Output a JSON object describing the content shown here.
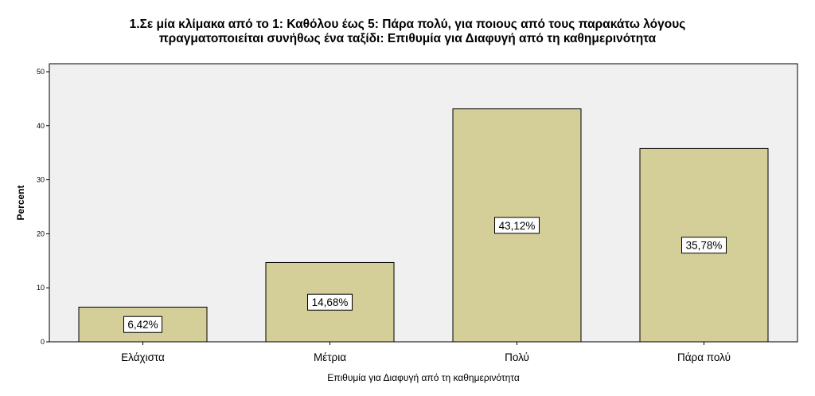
{
  "chart_data": {
    "type": "bar",
    "title_lines": [
      "1.Σε μία κλίμακα από το 1: Καθόλου έως 5: Πάρα πολύ, για ποιους από τους παρακάτω λόγους",
      "πραγματοποιείται συνήθως ένα ταξίδι: Επιθυμία για Διαφυγή από τη καθημερινότητα"
    ],
    "categories": [
      "Ελάχιστα",
      "Μέτρια",
      "Πολύ",
      "Πάρα πολύ"
    ],
    "values": [
      6.42,
      14.68,
      43.12,
      35.78
    ],
    "data_labels": [
      "6,42%",
      "14,68%",
      "43,12%",
      "35,78%"
    ],
    "xlabel": "Επιθυμία για Διαφυγή από τη καθημερινότητα",
    "ylabel": "Percent",
    "ylim": [
      0,
      50
    ],
    "yticks": [
      0,
      10,
      20,
      30,
      40,
      50
    ],
    "grid": false,
    "colors": {
      "bar_fill": "#d4ce98",
      "bar_stroke": "#000000",
      "plot_background": "#f0f0f0",
      "label_box_fill": "#ffffff"
    }
  }
}
